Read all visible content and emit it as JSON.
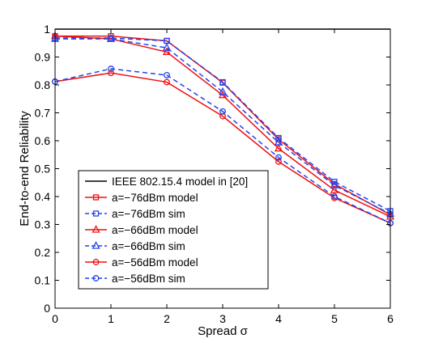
{
  "chart_data": {
    "type": "line",
    "title": "",
    "xlabel": "Spread σ",
    "ylabel": "End-to-end Reliability",
    "xlim": [
      0,
      6
    ],
    "ylim": [
      0,
      1
    ],
    "x_ticks": [
      "0",
      "1",
      "2",
      "3",
      "4",
      "5",
      "6"
    ],
    "y_ticks": [
      "0",
      "0.1",
      "0.2",
      "0.3",
      "0.4",
      "0.5",
      "0.6",
      "0.7",
      "0.8",
      "0.9",
      "1"
    ],
    "grid": false,
    "legend_position": "lower-left",
    "x": [
      0,
      1,
      2,
      3,
      4,
      5,
      6
    ],
    "series": [
      {
        "name": "IEEE 802.15.4 model in [20]",
        "values": [
          1,
          1,
          1,
          1,
          1,
          1,
          1
        ],
        "color": "#000000",
        "dash": "solid",
        "marker": "none"
      },
      {
        "name": "a=−76dBm model",
        "values": [
          0.975,
          0.975,
          0.958,
          0.808,
          0.605,
          0.445,
          0.335
        ],
        "color": "#ee1111",
        "dash": "solid",
        "marker": "square"
      },
      {
        "name": "a=−76dBm sim",
        "values": [
          0.968,
          0.968,
          0.958,
          0.81,
          0.61,
          0.453,
          0.348
        ],
        "color": "#2244ee",
        "dash": "dashed",
        "marker": "square"
      },
      {
        "name": "a=−66dBm model",
        "values": [
          0.975,
          0.965,
          0.918,
          0.763,
          0.572,
          0.423,
          0.328
        ],
        "color": "#ee1111",
        "dash": "solid",
        "marker": "triangle"
      },
      {
        "name": "a=−66dBm sim",
        "values": [
          0.965,
          0.965,
          0.933,
          0.775,
          0.594,
          0.44,
          0.338
        ],
        "color": "#2244ee",
        "dash": "dashed",
        "marker": "triangle"
      },
      {
        "name": "a=−56dBm model",
        "values": [
          0.812,
          0.843,
          0.81,
          0.688,
          0.525,
          0.395,
          0.305
        ],
        "color": "#ee1111",
        "dash": "solid",
        "marker": "circle"
      },
      {
        "name": "a=−56dBm sim",
        "values": [
          0.812,
          0.858,
          0.835,
          0.705,
          0.54,
          0.4,
          0.305
        ],
        "color": "#2244ee",
        "dash": "dashed",
        "marker": "circle"
      }
    ]
  }
}
